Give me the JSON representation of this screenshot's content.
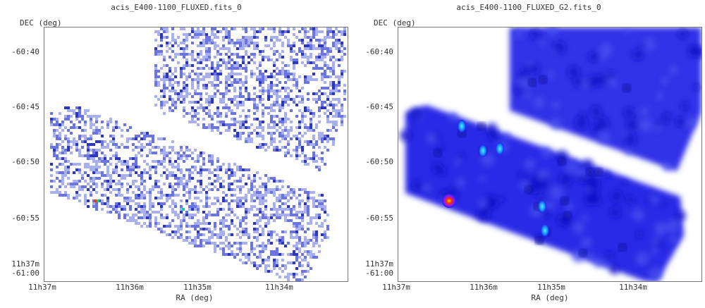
{
  "panels": [
    {
      "title": "acis_E400-1100_FLUXED.fits_0",
      "y_axis_label": "DEC (deg)",
      "x_axis_label": "RA (deg)",
      "y_ticks": [
        "-60:40",
        "-60:45",
        "-60:50",
        "-60:55",
        "11h37m",
        "-61:00"
      ],
      "x_ticks": [
        "11h37m",
        "11h36m",
        "11h35m",
        "11h34m"
      ]
    },
    {
      "title": "acis_E400-1100_FLUXED_G2.fits_0",
      "y_axis_label": "DEC (deg)",
      "x_axis_label": "RA (deg)",
      "y_ticks": [
        "-60:40",
        "-60:45",
        "-60:50",
        "-60:55",
        "11h37m",
        "-61:00"
      ],
      "x_ticks": [
        "11h37m",
        "11h36m",
        "11h35m",
        "11h34m"
      ]
    }
  ],
  "colors": {
    "background": "#ffffff",
    "axis": "#777777",
    "noise_pixel": "#5a66e0",
    "smoothed_field": "#1f1fe6",
    "hot_source": "#ff2200"
  }
}
